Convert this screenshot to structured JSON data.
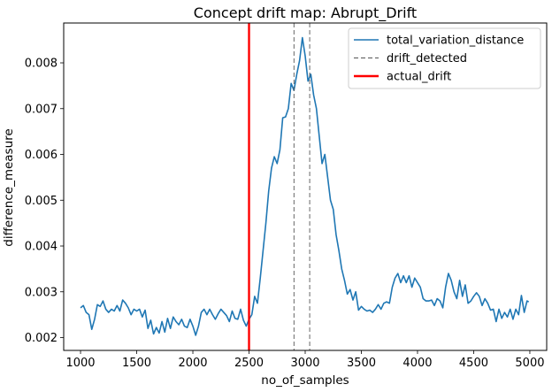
{
  "chart_data": {
    "type": "line",
    "title": "Concept drift map: Abrupt_Drift",
    "xlabel": "no_of_samples",
    "ylabel": "difference_measure",
    "xlim": [
      850,
      5150
    ],
    "ylim": [
      0.00172,
      0.00887
    ],
    "xticks": [
      1000,
      1500,
      2000,
      2500,
      3000,
      3500,
      4000,
      4500,
      5000
    ],
    "xtick_labels": [
      "1000",
      "1500",
      "2000",
      "2500",
      "3000",
      "3500",
      "4000",
      "4500",
      "5000"
    ],
    "yticks": [
      0.002,
      0.003,
      0.004,
      0.005,
      0.006,
      0.007,
      0.008
    ],
    "ytick_labels": [
      "0.002",
      "0.003",
      "0.004",
      "0.005",
      "0.006",
      "0.007",
      "0.008"
    ],
    "legend_position": "top-right",
    "series": [
      {
        "name": "total_variation_distance",
        "color": "#1f77b4",
        "points": [
          [
            1000,
            0.00265
          ],
          [
            1025,
            0.0027
          ],
          [
            1050,
            0.00255
          ],
          [
            1075,
            0.0025
          ],
          [
            1100,
            0.00218
          ],
          [
            1125,
            0.0024
          ],
          [
            1150,
            0.00272
          ],
          [
            1175,
            0.00268
          ],
          [
            1200,
            0.0028
          ],
          [
            1225,
            0.00262
          ],
          [
            1250,
            0.00255
          ],
          [
            1275,
            0.00262
          ],
          [
            1300,
            0.00258
          ],
          [
            1325,
            0.0027
          ],
          [
            1350,
            0.00258
          ],
          [
            1375,
            0.00282
          ],
          [
            1400,
            0.00275
          ],
          [
            1425,
            0.00265
          ],
          [
            1450,
            0.0025
          ],
          [
            1475,
            0.00262
          ],
          [
            1500,
            0.00258
          ],
          [
            1525,
            0.00262
          ],
          [
            1550,
            0.00245
          ],
          [
            1575,
            0.0026
          ],
          [
            1600,
            0.0022
          ],
          [
            1625,
            0.00238
          ],
          [
            1650,
            0.00208
          ],
          [
            1675,
            0.00222
          ],
          [
            1700,
            0.0021
          ],
          [
            1725,
            0.00235
          ],
          [
            1750,
            0.00212
          ],
          [
            1775,
            0.00242
          ],
          [
            1800,
            0.0022
          ],
          [
            1825,
            0.00245
          ],
          [
            1850,
            0.00235
          ],
          [
            1875,
            0.00228
          ],
          [
            1900,
            0.0024
          ],
          [
            1925,
            0.00225
          ],
          [
            1950,
            0.00222
          ],
          [
            1975,
            0.0024
          ],
          [
            2000,
            0.00225
          ],
          [
            2025,
            0.00205
          ],
          [
            2050,
            0.00225
          ],
          [
            2075,
            0.00255
          ],
          [
            2100,
            0.00262
          ],
          [
            2125,
            0.0025
          ],
          [
            2150,
            0.00262
          ],
          [
            2175,
            0.0025
          ],
          [
            2200,
            0.0024
          ],
          [
            2225,
            0.00252
          ],
          [
            2250,
            0.00262
          ],
          [
            2275,
            0.00255
          ],
          [
            2300,
            0.00248
          ],
          [
            2325,
            0.00235
          ],
          [
            2350,
            0.00258
          ],
          [
            2375,
            0.00242
          ],
          [
            2400,
            0.0024
          ],
          [
            2425,
            0.00262
          ],
          [
            2450,
            0.00238
          ],
          [
            2475,
            0.00225
          ],
          [
            2500,
            0.0024
          ],
          [
            2525,
            0.0025
          ],
          [
            2550,
            0.0029
          ],
          [
            2575,
            0.00275
          ],
          [
            2600,
            0.0033
          ],
          [
            2625,
            0.0039
          ],
          [
            2650,
            0.0045
          ],
          [
            2675,
            0.0052
          ],
          [
            2700,
            0.0057
          ],
          [
            2725,
            0.00595
          ],
          [
            2750,
            0.0058
          ],
          [
            2775,
            0.0061
          ],
          [
            2800,
            0.0068
          ],
          [
            2825,
            0.00682
          ],
          [
            2850,
            0.007
          ],
          [
            2875,
            0.00755
          ],
          [
            2900,
            0.0074
          ],
          [
            2925,
            0.00775
          ],
          [
            2950,
            0.00805
          ],
          [
            2975,
            0.00855
          ],
          [
            3000,
            0.00815
          ],
          [
            3025,
            0.0076
          ],
          [
            3050,
            0.00775
          ],
          [
            3075,
            0.0073
          ],
          [
            3100,
            0.007
          ],
          [
            3125,
            0.0064
          ],
          [
            3150,
            0.0058
          ],
          [
            3175,
            0.006
          ],
          [
            3200,
            0.0055
          ],
          [
            3225,
            0.005
          ],
          [
            3250,
            0.0048
          ],
          [
            3275,
            0.00425
          ],
          [
            3300,
            0.0039
          ],
          [
            3325,
            0.0035
          ],
          [
            3350,
            0.00325
          ],
          [
            3375,
            0.00295
          ],
          [
            3400,
            0.00305
          ],
          [
            3425,
            0.00282
          ],
          [
            3450,
            0.003
          ],
          [
            3475,
            0.0026
          ],
          [
            3500,
            0.00268
          ],
          [
            3525,
            0.00262
          ],
          [
            3550,
            0.00258
          ],
          [
            3575,
            0.0026
          ],
          [
            3600,
            0.00255
          ],
          [
            3625,
            0.00262
          ],
          [
            3650,
            0.00272
          ],
          [
            3675,
            0.00262
          ],
          [
            3700,
            0.00275
          ],
          [
            3725,
            0.00278
          ],
          [
            3750,
            0.00275
          ],
          [
            3775,
            0.0031
          ],
          [
            3800,
            0.0033
          ],
          [
            3825,
            0.0034
          ],
          [
            3850,
            0.0032
          ],
          [
            3875,
            0.00335
          ],
          [
            3900,
            0.0032
          ],
          [
            3925,
            0.00335
          ],
          [
            3950,
            0.0031
          ],
          [
            3975,
            0.0033
          ],
          [
            4000,
            0.0032
          ],
          [
            4025,
            0.0031
          ],
          [
            4050,
            0.00285
          ],
          [
            4075,
            0.0028
          ],
          [
            4100,
            0.0028
          ],
          [
            4125,
            0.00282
          ],
          [
            4150,
            0.0027
          ],
          [
            4175,
            0.00285
          ],
          [
            4200,
            0.0028
          ],
          [
            4225,
            0.00265
          ],
          [
            4250,
            0.0031
          ],
          [
            4275,
            0.0034
          ],
          [
            4300,
            0.00325
          ],
          [
            4325,
            0.003
          ],
          [
            4350,
            0.00285
          ],
          [
            4375,
            0.00325
          ],
          [
            4400,
            0.0029
          ],
          [
            4425,
            0.00315
          ],
          [
            4450,
            0.00275
          ],
          [
            4475,
            0.0028
          ],
          [
            4500,
            0.0029
          ],
          [
            4525,
            0.00298
          ],
          [
            4550,
            0.0029
          ],
          [
            4575,
            0.0027
          ],
          [
            4600,
            0.00285
          ],
          [
            4625,
            0.00275
          ],
          [
            4650,
            0.0026
          ],
          [
            4675,
            0.00262
          ],
          [
            4700,
            0.00235
          ],
          [
            4725,
            0.00262
          ],
          [
            4750,
            0.00242
          ],
          [
            4775,
            0.00255
          ],
          [
            4800,
            0.00245
          ],
          [
            4825,
            0.00262
          ],
          [
            4850,
            0.0024
          ],
          [
            4875,
            0.00262
          ],
          [
            4900,
            0.0025
          ],
          [
            4925,
            0.00292
          ],
          [
            4950,
            0.00255
          ],
          [
            4975,
            0.0028
          ],
          [
            4990,
            0.00278
          ]
        ]
      }
    ],
    "vlines": [
      {
        "name": "drift_detected",
        "color": "#555555",
        "style": "dashed",
        "x": [
          2900,
          3040
        ]
      },
      {
        "name": "actual_drift",
        "color": "#ff0000",
        "style": "solid",
        "x": [
          2500
        ]
      }
    ]
  }
}
